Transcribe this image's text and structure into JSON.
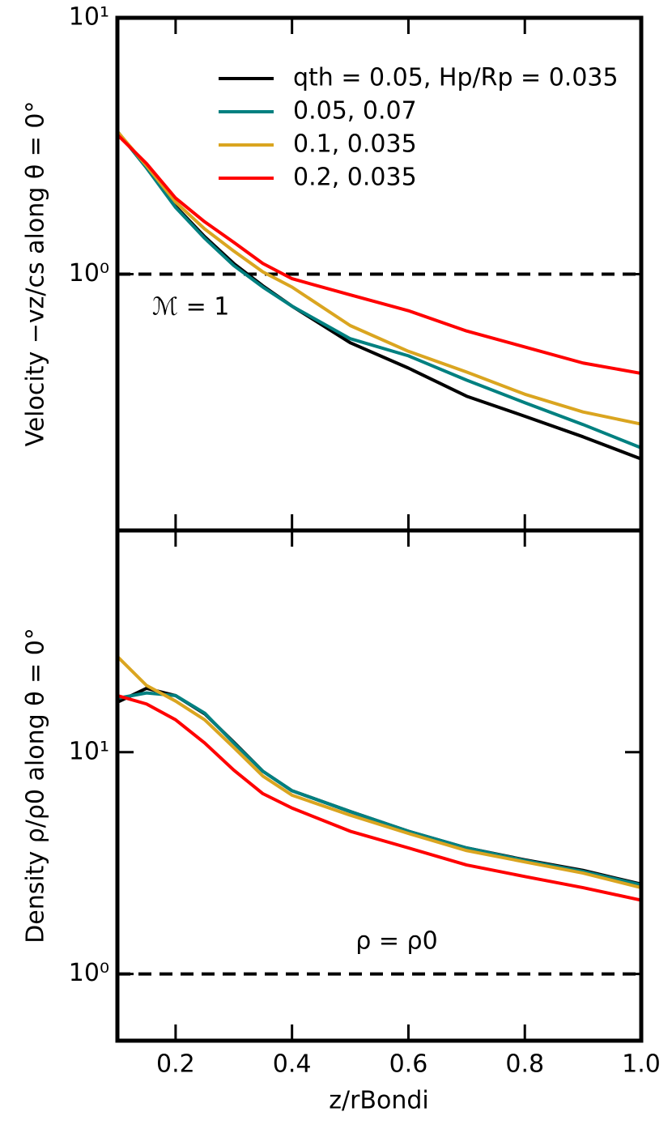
{
  "chart_data": [
    {
      "type": "line",
      "ylabel": "Velocity −vz/cs along θ = 0°",
      "log_y": true,
      "xlim": [
        0.1,
        1.0
      ],
      "ylim": [
        0.1,
        10
      ],
      "yticks": [
        {
          "value": 1,
          "label": "10⁰"
        },
        {
          "value": 10,
          "label": "10¹"
        }
      ],
      "hline": 1,
      "annotation": "ℳ = 1",
      "legend": "upper right",
      "x": [
        0.1,
        0.15,
        0.2,
        0.25,
        0.3,
        0.35,
        0.4,
        0.5,
        0.6,
        0.7,
        0.8,
        0.9,
        1.0
      ],
      "series": [
        {
          "name": "qth = 0.05, Hp/Rp = 0.035",
          "color": "#000000",
          "values": [
            3.6,
            2.6,
            1.84,
            1.4,
            1.1,
            0.9,
            0.75,
            0.54,
            0.43,
            0.334,
            0.279,
            0.232,
            0.19
          ]
        },
        {
          "name": "0.05, 0.07",
          "color": "#008080",
          "values": [
            3.6,
            2.6,
            1.82,
            1.38,
            1.08,
            0.89,
            0.75,
            0.56,
            0.48,
            0.386,
            0.315,
            0.259,
            0.21
          ]
        },
        {
          "name": "0.1, 0.035",
          "color": "#daa520",
          "values": [
            3.6,
            2.65,
            1.91,
            1.5,
            1.23,
            1.02,
            0.89,
            0.63,
            0.5,
            0.415,
            0.34,
            0.29,
            0.26
          ]
        },
        {
          "name": "0.2, 0.035",
          "color": "#ff0000",
          "values": [
            3.5,
            2.7,
            1.98,
            1.6,
            1.33,
            1.1,
            0.96,
            0.83,
            0.72,
            0.6,
            0.52,
            0.45,
            0.41
          ]
        }
      ]
    },
    {
      "type": "line",
      "ylabel": "Density ρ/ρ0 along θ = 0°",
      "xlabel": "z/rBondi",
      "log_y": true,
      "xlim": [
        0.1,
        1.0
      ],
      "ylim": [
        0.5,
        100
      ],
      "yticks": [
        {
          "value": 1,
          "label": "10⁰"
        },
        {
          "value": 10,
          "label": "10¹"
        }
      ],
      "xticks": [
        0.2,
        0.4,
        0.6,
        0.8,
        {
          "value": 1.0,
          "label": "1.0"
        }
      ],
      "hline": 1,
      "annotation": "ρ = ρ0",
      "x": [
        0.1,
        0.15,
        0.2,
        0.25,
        0.3,
        0.35,
        0.4,
        0.5,
        0.6,
        0.7,
        0.8,
        0.9,
        1.0
      ],
      "series": [
        {
          "color": "#000000",
          "values": [
            16.8,
            19.4,
            18,
            14.9,
            11.1,
            8.2,
            6.7,
            5.4,
            4.4,
            3.7,
            3.27,
            2.93,
            2.54
          ]
        },
        {
          "color": "#008080",
          "values": [
            17.5,
            18.5,
            18,
            15,
            11,
            8.2,
            6.7,
            5.4,
            4.4,
            3.7,
            3.25,
            2.9,
            2.52
          ]
        },
        {
          "color": "#daa520",
          "values": [
            27,
            20,
            17,
            14,
            10.5,
            7.8,
            6.4,
            5.2,
            4.3,
            3.6,
            3.2,
            2.85,
            2.45
          ]
        },
        {
          "color": "#ff0000",
          "values": [
            18,
            16.5,
            14,
            11,
            8.3,
            6.5,
            5.6,
            4.4,
            3.7,
            3.1,
            2.75,
            2.45,
            2.15
          ]
        }
      ]
    }
  ]
}
